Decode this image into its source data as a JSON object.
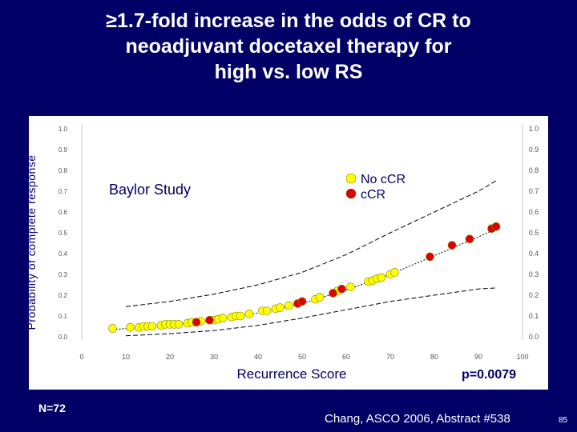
{
  "slide": {
    "title_lines": [
      "≥1.7-fold increase in the odds of CR to",
      "neoadjuvant docetaxel therapy for",
      "high vs. low RS"
    ],
    "n_label": "N=72",
    "citation": "Chang, ASCO 2006, Abstract #538",
    "slide_number": "85"
  },
  "chart_data": {
    "type": "scatter",
    "title": "",
    "study_label": "Baylor Study",
    "xlabel": "Recurrence Score",
    "ylabel": "Probability of complete response",
    "pvalue": "p=0.0079",
    "xlim": [
      0,
      100
    ],
    "ylim": [
      0,
      1.0
    ],
    "x_ticks": [
      "0",
      "10",
      "20",
      "30",
      "40",
      "50",
      "60",
      "70",
      "80",
      "90",
      "100"
    ],
    "y_ticks_left": [
      "1.0",
      "0.9",
      "0.8",
      "0.7",
      "0.6",
      "0.5",
      "0.4",
      "0.3",
      "0.2",
      "0.1",
      "0.0"
    ],
    "y_ticks_right": [
      "1.0",
      "0.9",
      "0.8",
      "0.7",
      "0.6",
      "0.5",
      "0.4",
      "0.3",
      "0.2",
      "0.1",
      "0.0"
    ],
    "legend": [
      {
        "label": "No cCR",
        "color": "#ffff00"
      },
      {
        "label": "cCR",
        "color": "#dd0000"
      }
    ],
    "series": [
      {
        "name": "No cCR",
        "color": "#ffff00",
        "points": [
          [
            7,
            0.04
          ],
          [
            11,
            0.045
          ],
          [
            13,
            0.045
          ],
          [
            14,
            0.05
          ],
          [
            15,
            0.05
          ],
          [
            16,
            0.05
          ],
          [
            18,
            0.055
          ],
          [
            19,
            0.06
          ],
          [
            20,
            0.06
          ],
          [
            21,
            0.06
          ],
          [
            22,
            0.06
          ],
          [
            24,
            0.065
          ],
          [
            25,
            0.07
          ],
          [
            27,
            0.075
          ],
          [
            30,
            0.08
          ],
          [
            31,
            0.085
          ],
          [
            32,
            0.09
          ],
          [
            34,
            0.095
          ],
          [
            35,
            0.1
          ],
          [
            36,
            0.1
          ],
          [
            38,
            0.11
          ],
          [
            41,
            0.125
          ],
          [
            42,
            0.125
          ],
          [
            44,
            0.135
          ],
          [
            45,
            0.14
          ],
          [
            47,
            0.15
          ],
          [
            53,
            0.18
          ],
          [
            54,
            0.19
          ],
          [
            58,
            0.22
          ],
          [
            61,
            0.24
          ],
          [
            65,
            0.265
          ],
          [
            66,
            0.27
          ],
          [
            67,
            0.28
          ],
          [
            68,
            0.285
          ],
          [
            70,
            0.3
          ],
          [
            71,
            0.31
          ]
        ]
      },
      {
        "name": "cCR",
        "color": "#dd0000",
        "points": [
          [
            26,
            0.07
          ],
          [
            29,
            0.08
          ],
          [
            49,
            0.16
          ],
          [
            50,
            0.17
          ],
          [
            57,
            0.21
          ],
          [
            59,
            0.23
          ],
          [
            79,
            0.385
          ],
          [
            84,
            0.44
          ],
          [
            88,
            0.47
          ],
          [
            93,
            0.52
          ],
          [
            94,
            0.53
          ]
        ]
      }
    ],
    "fit_curve": [
      [
        7,
        0.035
      ],
      [
        20,
        0.055
      ],
      [
        30,
        0.08
      ],
      [
        40,
        0.115
      ],
      [
        50,
        0.16
      ],
      [
        60,
        0.225
      ],
      [
        70,
        0.3
      ],
      [
        80,
        0.39
      ],
      [
        90,
        0.48
      ],
      [
        94,
        0.52
      ]
    ],
    "ci_upper": [
      [
        10,
        0.145
      ],
      [
        20,
        0.17
      ],
      [
        30,
        0.205
      ],
      [
        40,
        0.25
      ],
      [
        50,
        0.31
      ],
      [
        60,
        0.395
      ],
      [
        70,
        0.5
      ],
      [
        80,
        0.6
      ],
      [
        90,
        0.7
      ],
      [
        94,
        0.75
      ]
    ],
    "ci_lower": [
      [
        10,
        0.005
      ],
      [
        20,
        0.015
      ],
      [
        30,
        0.03
      ],
      [
        40,
        0.055
      ],
      [
        50,
        0.09
      ],
      [
        60,
        0.13
      ],
      [
        70,
        0.17
      ],
      [
        80,
        0.2
      ],
      [
        90,
        0.23
      ],
      [
        94,
        0.235
      ]
    ]
  }
}
